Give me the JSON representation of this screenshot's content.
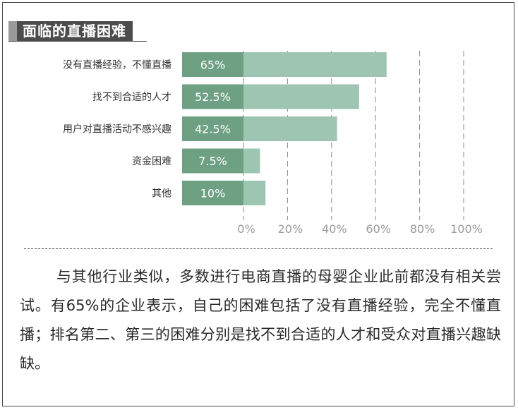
{
  "title": "面临的直播困难",
  "colors": {
    "title_bg": "#4c4c4c",
    "bar_dark": "#6ea183",
    "bar_light": "#9dc5b2",
    "tick": "#9a9a9a"
  },
  "chart_data": {
    "type": "bar",
    "orientation": "horizontal",
    "categories": [
      "没有直播经验，不懂直播",
      "找不到合适的人才",
      "用户对直播活动不感兴趣",
      "资金困难",
      "其他"
    ],
    "values": [
      65,
      52.5,
      42.5,
      7.5,
      10
    ],
    "value_labels": [
      "65%",
      "52.5%",
      "42.5%",
      "7.5%",
      "10%"
    ],
    "x_ticks": [
      "0%",
      "20%",
      "40%",
      "60%",
      "80%",
      "100%"
    ],
    "xlim": [
      0,
      100
    ],
    "grid": "vertical dashed"
  },
  "body_text": "与其他行业类似，多数进行电商直播的母婴企业此前都没有相关尝试。有65%的企业表示，自己的困难包括了没有直播经验，完全不懂直播；排名第二、第三的困难分别是找不到合适的人才和受众对直播兴趣缺缺。"
}
